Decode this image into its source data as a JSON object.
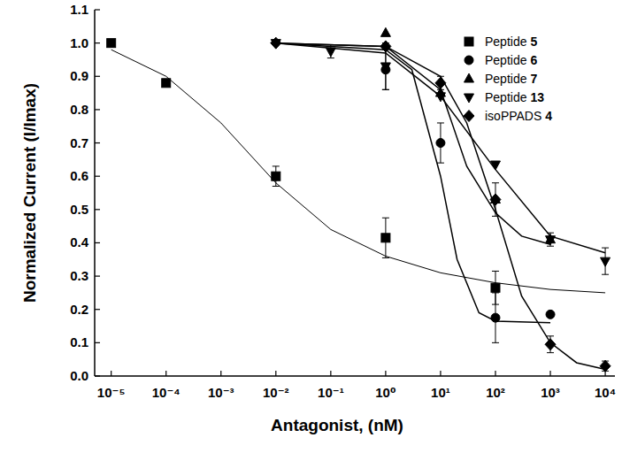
{
  "chart_data": {
    "type": "scatter",
    "x_label": "Antagonist, (nM)",
    "y_label": "Normalized Current (I/Imax)",
    "log": "x",
    "legend": "top-right",
    "grid": false,
    "xlim": [
      5e-06,
      15000
    ],
    "xticks": [
      {
        "value": 1e-05,
        "label": "10⁻⁵"
      },
      {
        "value": 0.0001,
        "label": "10⁻⁴"
      },
      {
        "value": 0.001,
        "label": "10⁻³"
      },
      {
        "value": 0.01,
        "label": "10⁻²"
      },
      {
        "value": 0.1,
        "label": "10⁻¹"
      },
      {
        "value": 1,
        "label": "10⁰"
      },
      {
        "value": 10,
        "label": "10¹"
      },
      {
        "value": 100,
        "label": "10²"
      },
      {
        "value": 1000,
        "label": "10³"
      },
      {
        "value": 10000,
        "label": "10⁴"
      }
    ],
    "ylim": [
      0,
      1.1
    ],
    "yticks": [
      {
        "value": 0,
        "label": "0.0"
      },
      {
        "value": 0.1,
        "label": "0.1"
      },
      {
        "value": 0.2,
        "label": "0.2"
      },
      {
        "value": 0.3,
        "label": "0.3"
      },
      {
        "value": 0.4,
        "label": "0.4"
      },
      {
        "value": 0.5,
        "label": "0.5"
      },
      {
        "value": 0.6,
        "label": "0.6"
      },
      {
        "value": 0.7,
        "label": "0.7"
      },
      {
        "value": 0.8,
        "label": "0.8"
      },
      {
        "value": 0.9,
        "label": "0.9"
      },
      {
        "value": 1,
        "label": "1.0"
      },
      {
        "value": 1.1,
        "label": "1.1"
      }
    ],
    "series": [
      {
        "name": "Peptide 5",
        "color": "#000000",
        "marker": "square",
        "x": [
          1e-05,
          0.0001,
          0.01,
          1,
          100
        ],
        "values": [
          1.0,
          0.88,
          0.6,
          0.415,
          0.265
        ],
        "errors": [
          null,
          null,
          0.03,
          0.06,
          0.05
        ],
        "fit": {
          "x": [
            1e-05,
            0.0001,
            0.001,
            0.01,
            0.1,
            1,
            10,
            100,
            1000,
            10000
          ],
          "values": [
            0.98,
            0.9,
            0.76,
            0.58,
            0.44,
            0.36,
            0.31,
            0.28,
            0.26,
            0.25
          ]
        }
      },
      {
        "name": "Peptide 6",
        "color": "#000000",
        "marker": "circle",
        "x": [
          1,
          10,
          100,
          1000
        ],
        "values": [
          0.92,
          0.7,
          0.175,
          0.185
        ],
        "errors": [
          0.06,
          0.06,
          0.075,
          null
        ],
        "fit": {
          "x": [
            0.01,
            1,
            3,
            10,
            20,
            50,
            100,
            1000
          ],
          "values": [
            1.0,
            0.98,
            0.92,
            0.6,
            0.35,
            0.19,
            0.165,
            0.16
          ]
        }
      },
      {
        "name": "Peptide 7",
        "color": "#000000",
        "marker": "triangle-up",
        "x": [
          1,
          10,
          100,
          1000
        ],
        "values": [
          1.03,
          0.85,
          0.53,
          0.41
        ],
        "errors": [
          null,
          null,
          null,
          null
        ],
        "fit": {
          "x": [
            0.01,
            1,
            10,
            30,
            100,
            300,
            1000
          ],
          "values": [
            1.0,
            0.99,
            0.86,
            0.63,
            0.49,
            0.42,
            0.395
          ]
        }
      },
      {
        "name": "Peptide 13",
        "color": "#000000",
        "marker": "triangle-down",
        "x": [
          0.01,
          0.1,
          1,
          10,
          100,
          1000,
          10000
        ],
        "values": [
          1.0,
          0.975,
          0.93,
          0.84,
          0.635,
          0.41,
          0.345
        ],
        "errors": [
          null,
          0.02,
          0.07,
          null,
          null,
          0.02,
          0.04
        ],
        "fit": {
          "x": [
            0.01,
            1,
            10,
            100,
            1000,
            10000
          ],
          "values": [
            1.0,
            0.97,
            0.84,
            0.62,
            0.42,
            0.37
          ]
        }
      },
      {
        "name": "isoPPADS 4",
        "color": "#000000",
        "marker": "diamond",
        "x": [
          0.01,
          1,
          10,
          100,
          1000,
          10000
        ],
        "values": [
          1.0,
          0.99,
          0.88,
          0.53,
          0.095,
          0.03
        ],
        "errors": [
          null,
          null,
          0.02,
          0.05,
          0.025,
          0.015
        ],
        "fit": {
          "x": [
            0.01,
            1,
            10,
            30,
            100,
            300,
            1000,
            3000,
            10000
          ],
          "values": [
            1.0,
            0.99,
            0.9,
            0.76,
            0.5,
            0.24,
            0.1,
            0.04,
            0.02
          ]
        }
      }
    ]
  }
}
